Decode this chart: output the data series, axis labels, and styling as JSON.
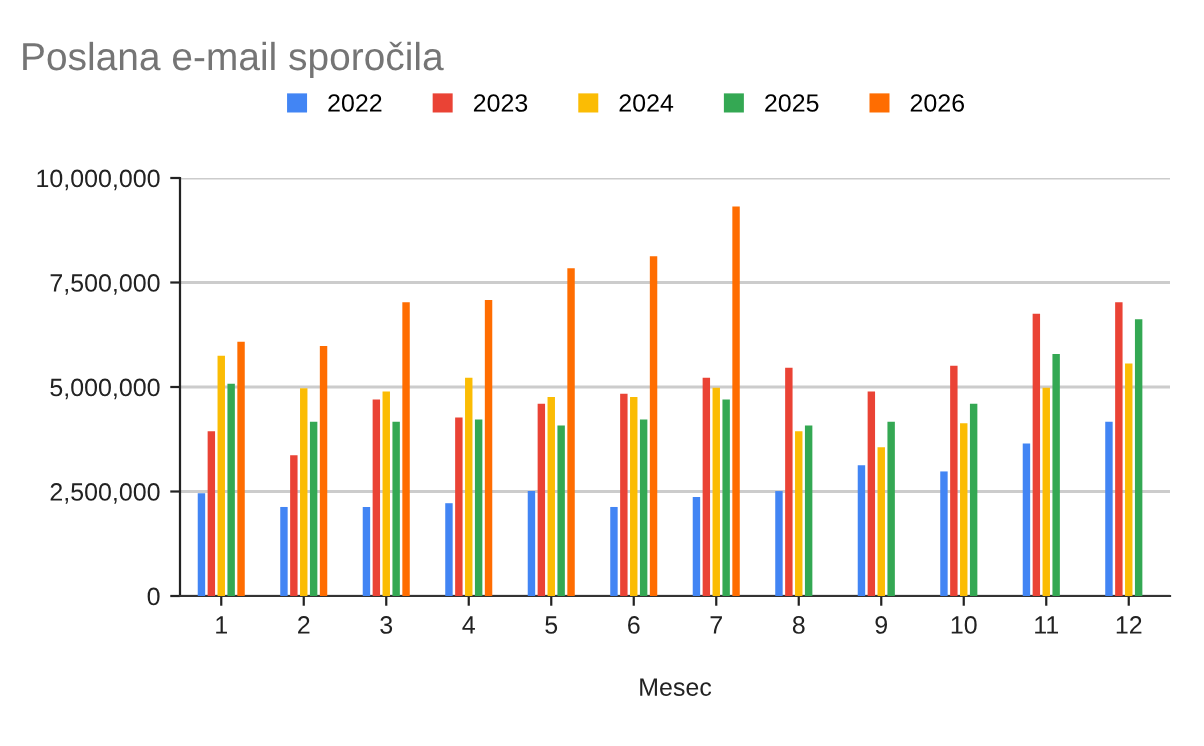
{
  "chart_data": {
    "type": "bar",
    "title": "Poslana e-mail sporočila",
    "xlabel": "Mesec",
    "categories": [
      "1",
      "2",
      "3",
      "4",
      "5",
      "6",
      "7",
      "8",
      "9",
      "10",
      "11",
      "12"
    ],
    "series": [
      {
        "name": "2022",
        "color": "#4285f4",
        "values": [
          2460000,
          2130000,
          2130000,
          2220000,
          2510000,
          2130000,
          2370000,
          2510000,
          3130000,
          2980000,
          3650000,
          4170000
        ]
      },
      {
        "name": "2023",
        "color": "#ea4335",
        "values": [
          3940000,
          3370000,
          4700000,
          4270000,
          4600000,
          4840000,
          5220000,
          5460000,
          4890000,
          5510000,
          6750000,
          7030000
        ]
      },
      {
        "name": "2024",
        "color": "#fbbc04",
        "values": [
          5750000,
          4970000,
          4890000,
          5220000,
          4760000,
          4760000,
          4980000,
          3940000,
          3560000,
          4130000,
          4980000,
          5560000
        ]
      },
      {
        "name": "2025",
        "color": "#34a853",
        "values": [
          5080000,
          4170000,
          4170000,
          4220000,
          4080000,
          4220000,
          4700000,
          4080000,
          4170000,
          4600000,
          5790000,
          6620000
        ]
      },
      {
        "name": "2026",
        "color": "#ff6d01",
        "values": [
          6080000,
          5980000,
          7030000,
          7080000,
          7840000,
          8130000,
          9320000,
          null,
          null,
          null,
          null,
          null
        ]
      }
    ],
    "ylim": [
      0,
      10000000
    ],
    "yticks": [
      {
        "value": 0,
        "label": "0"
      },
      {
        "value": 2500000,
        "label": "2,500,000"
      },
      {
        "value": 5000000,
        "label": "5,000,000"
      },
      {
        "value": 7500000,
        "label": "7,500,000"
      },
      {
        "value": 10000000,
        "label": "10,000,000"
      }
    ],
    "grid": "y",
    "legend": "top"
  }
}
